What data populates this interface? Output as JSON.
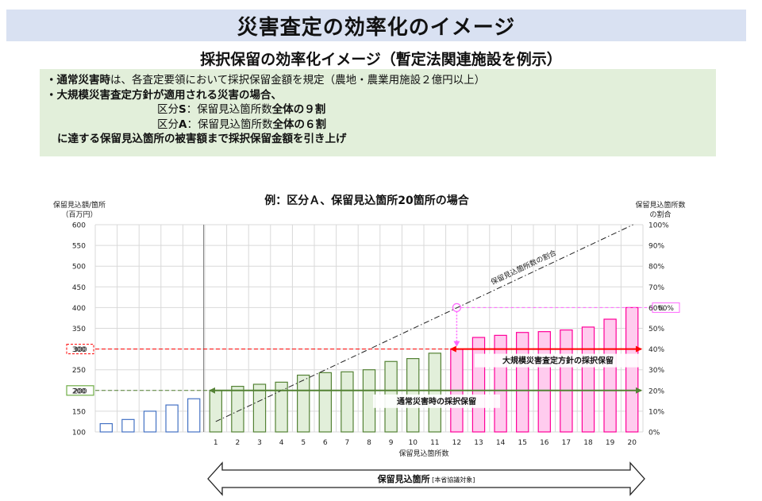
{
  "page": {
    "title": "災害査定の効率化のイメージ",
    "subtitle": "採択保留の効率化イメージ（暫定法関連施設を例示）"
  },
  "notes": {
    "line1_a": "・通常災害時",
    "line1_b": "は、各査定要領において採択保留金額を規定（農地・農業用施設２億円以上）",
    "line2": "・大規模災害査定方針が適用される災害の場合、",
    "line3_a": "区分",
    "line3_b": "S",
    "line3_c": "：保留見込箇所数",
    "line3_d": "全体の９割",
    "line4_a": "区分",
    "line4_b": "A",
    "line4_c": "：保留見込箇所数",
    "line4_d": "全体の６割",
    "line5": "に達する保留見込箇所の被害額まで採択保留金額を引き上げ"
  },
  "colors": {
    "blue_outline": "#4472c4",
    "green_fill": "#e2efda",
    "green_line": "#548235",
    "pink_fill": "#ffccee",
    "pink_outline": "#ff0099",
    "red": "#ff0000",
    "magenta": "#ff66ff"
  },
  "chart_data": {
    "type": "bar",
    "title": "例：区分Ａ、保留見込箇所20箇所の場合",
    "ylabel_left_line1": "保留見込額/箇所",
    "ylabel_left_line2": "（百万円）",
    "ylabel_right_line1": "保留見込箇所数",
    "ylabel_right_line2": "の割合",
    "xlabel": "保留見込箇所数",
    "ylim": [
      100,
      600
    ],
    "yticks": [
      "100",
      "150",
      "200",
      "250",
      "300",
      "350",
      "400",
      "450",
      "500",
      "550",
      "600"
    ],
    "y2ticks": [
      "0%",
      "10%",
      "20%",
      "30%",
      "40%",
      "50%",
      "60%",
      "70%",
      "80%",
      "90%",
      "100%"
    ],
    "categories": [
      "",
      "",
      "",
      "",
      "",
      "1",
      "2",
      "3",
      "4",
      "5",
      "6",
      "7",
      "8",
      "9",
      "10",
      "11",
      "12",
      "13",
      "14",
      "15",
      "16",
      "17",
      "18",
      "19",
      "20"
    ],
    "values": [
      120,
      130,
      150,
      165,
      180,
      200,
      210,
      215,
      220,
      237,
      243,
      245,
      250,
      270,
      277,
      290,
      300,
      328,
      333,
      340,
      342,
      346,
      353,
      372,
      400
    ],
    "groups": [
      "below",
      "below",
      "below",
      "below",
      "below",
      "normal",
      "normal",
      "normal",
      "normal",
      "normal",
      "normal",
      "normal",
      "normal",
      "normal",
      "normal",
      "normal",
      "large",
      "large",
      "large",
      "large",
      "large",
      "large",
      "large",
      "large",
      "large"
    ],
    "ratio_line_label": "保留見込箇所数の割合",
    "ratio_line_start_pct": 5,
    "ratio_line_end_pct": 100,
    "threshold_normal": 200,
    "threshold_large": 300,
    "threshold_ratio_pct": 60,
    "threshold_normal_label": "200",
    "threshold_large_label": "300",
    "threshold_ratio_label": "60%",
    "arrow_large_label": "大規模災害査定方針の採択保留",
    "arrow_normal_label": "通常災害時の採択保留",
    "bottom_arrow_label": "保留見込箇所",
    "bottom_arrow_sub": "[本省協議対象]"
  }
}
